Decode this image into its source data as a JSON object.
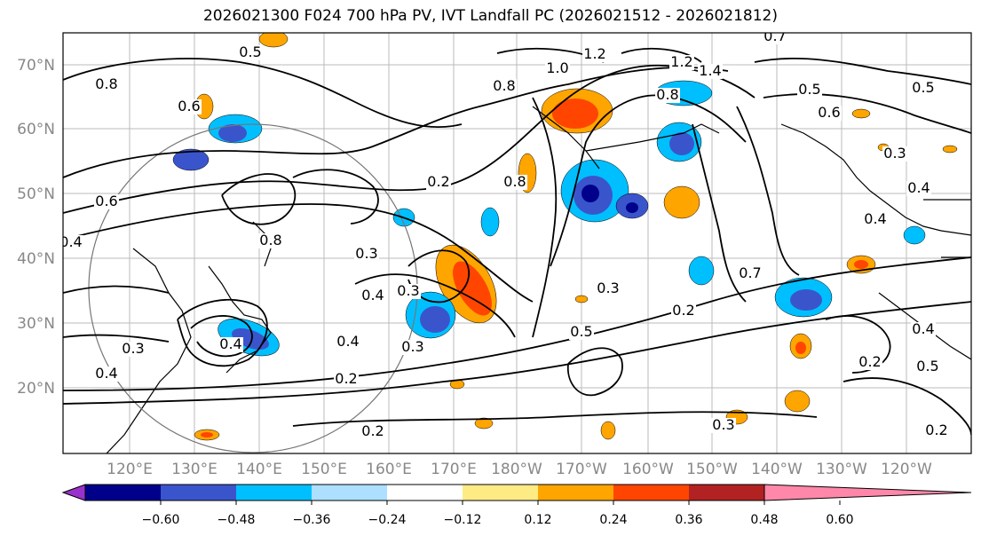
{
  "title": "2026021300 F024 700 hPa PV, IVT Landfall PC (2026021512 - 2026021812)",
  "lat_labels": [
    "70°N",
    "60°N",
    "50°N",
    "40°N",
    "30°N",
    "20°N"
  ],
  "lon_labels": [
    "120°E",
    "130°E",
    "140°E",
    "150°E",
    "160°E",
    "170°E",
    "180°W",
    "170°W",
    "160°W",
    "150°W",
    "140°W",
    "130°W",
    "120°W"
  ],
  "contour_labels": [
    "0.7",
    "0.5",
    "1.2",
    "1.0",
    "0.8",
    "1.2",
    "1.4",
    "0.8",
    "0.6",
    "0.5",
    "0.5",
    "0.6",
    "0.8",
    "0.3",
    "0.4",
    "0.2",
    "0.8",
    "0.3",
    "0.4",
    "0.3",
    "0.4",
    "0.3",
    "0.4",
    "0.3",
    "0.2",
    "0.5",
    "0.7",
    "0.2",
    "0.3",
    "0.4",
    "0.2",
    "0.3",
    "0.2",
    "0.2",
    "0.4",
    "0.5",
    "0.6",
    "0.4",
    "0.8",
    "0.4"
  ],
  "colorbar": {
    "ticks": [
      "−0.60",
      "−0.48",
      "−0.36",
      "−0.24",
      "−0.12",
      "0.12",
      "0.24",
      "0.36",
      "0.48",
      "0.60"
    ],
    "colors": [
      "#9932CC",
      "#00008B",
      "#3A55CC",
      "#00BFFF",
      "#ADDFFF",
      "#FFFFFF",
      "#FFEB84",
      "#FFA500",
      "#FF4500",
      "#B22222",
      "#FF88AA"
    ]
  }
}
